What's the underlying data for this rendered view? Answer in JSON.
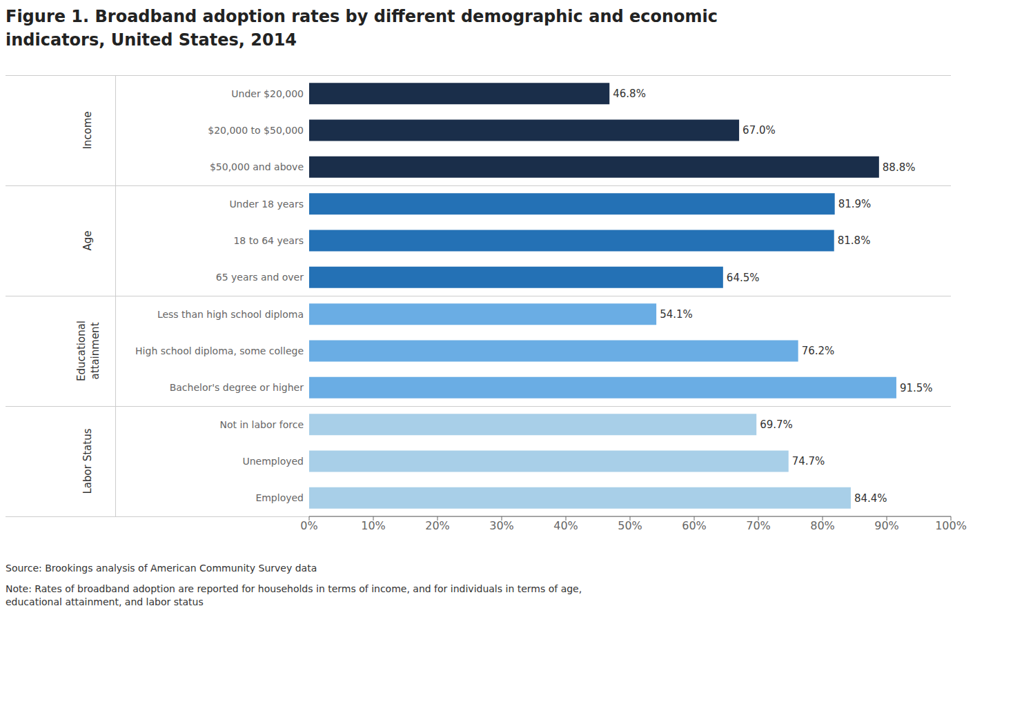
{
  "chart_data": {
    "type": "bar",
    "orientation": "horizontal",
    "title": "Figure 1. Broadband adoption rates by different demographic and economic\nindicators, United States, 2014",
    "annotations": [
      "Source: Brookings analysis of American Community Survey data",
      "Note: Rates of broadband adoption are reported for households in terms of income, and for individuals in terms of age,\neducational attainment, and labor status"
    ],
    "categories": [
      "Under $20,000",
      "$20,000 to $50,000",
      "$50,000 and above",
      "Under 18 years",
      "18 to 64 years",
      "65 years and over",
      "Less than high school diploma",
      "High school diploma, some college",
      "Bachelor's degree or higher",
      "Not in labor force",
      "Unemployed",
      "Employed"
    ],
    "values": [
      46.8,
      67.0,
      88.8,
      81.9,
      81.8,
      64.5,
      54.1,
      76.2,
      91.5,
      69.7,
      74.7,
      84.4
    ],
    "value_labels": [
      "46.8%",
      "67.0%",
      "88.8%",
      "81.9%",
      "81.8%",
      "64.5%",
      "54.1%",
      "76.2%",
      "91.5%",
      "69.7%",
      "74.7%",
      "84.4%"
    ],
    "colors": [
      "#1a2e4a",
      "#1a2e4a",
      "#1a2e4a",
      "#2471b5",
      "#2471b5",
      "#2471b5",
      "#6aade4",
      "#6aade4",
      "#6aade4",
      "#a8cfe8",
      "#a8cfe8",
      "#a8cfe8"
    ],
    "groups": [
      {
        "label": "Income",
        "categories": [
          "Under $20,000",
          "$20,000 to $50,000",
          "$50,000 and above"
        ]
      },
      {
        "label": "Age",
        "categories": [
          "Under 18 years",
          "18 to 64 years",
          "65 years and over"
        ]
      },
      {
        "label": "Educational\nattainment",
        "categories": [
          "Less than high school diploma",
          "High school diploma, some college",
          "Bachelor's degree or higher"
        ]
      },
      {
        "label": "Labor Status",
        "categories": [
          "Not in labor force",
          "Unemployed",
          "Employed"
        ]
      }
    ],
    "xlim": [
      0,
      100
    ],
    "xticks": [
      {
        "value": 0,
        "label": "0%"
      },
      {
        "value": 10,
        "label": "10%"
      },
      {
        "value": 20,
        "label": "20%"
      },
      {
        "value": 30,
        "label": "30%"
      },
      {
        "value": 40,
        "label": "40%"
      },
      {
        "value": 50,
        "label": "50%"
      },
      {
        "value": 60,
        "label": "60%"
      },
      {
        "value": 70,
        "label": "70%"
      },
      {
        "value": 80,
        "label": "80%"
      },
      {
        "value": 90,
        "label": "90%"
      },
      {
        "value": 100,
        "label": "100%"
      }
    ],
    "data_labels": true,
    "grid": false
  }
}
